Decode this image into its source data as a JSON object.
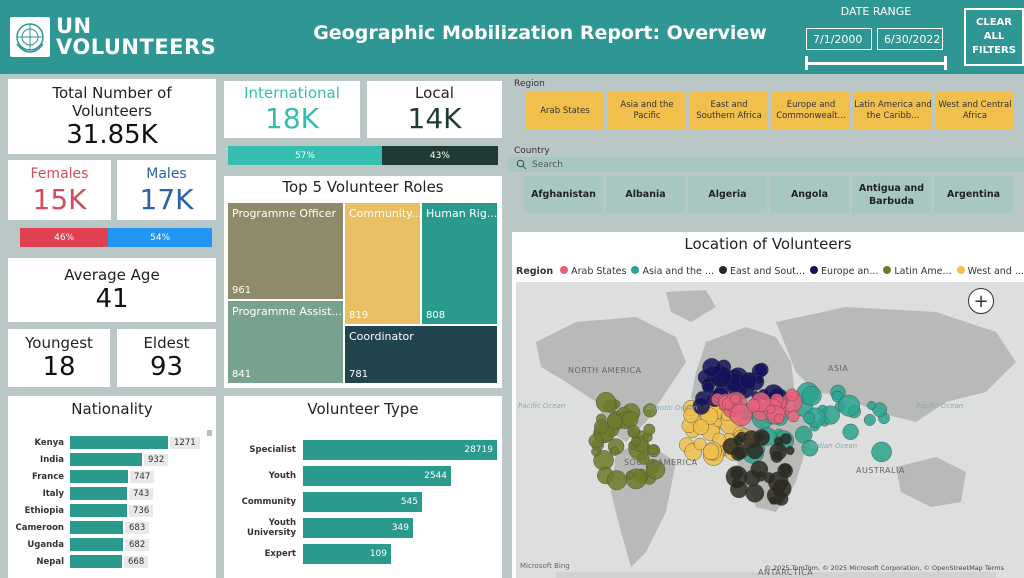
{
  "header": {
    "logo_text_line1": "UN",
    "logo_text_line2": "VOLUNTEERS",
    "title": "Geographic Mobilization Report: Overview",
    "date_range_label": "DATE RANGE",
    "date_start": "7/1/2000",
    "date_end": "6/30/2022",
    "clear_filters_label": "CLEAR ALL FILTERS",
    "colors": {
      "header_bg": "#2e9793"
    }
  },
  "kpis": {
    "total_label": "Total Number of Volunteers",
    "total_value": "31.85K",
    "females_label": "Females",
    "females_value": "15K",
    "males_label": "Males",
    "males_value": "17K",
    "gender_split": {
      "female_pct": "46%",
      "male_pct": "54%",
      "female_fraction": 0.46,
      "male_fraction": 0.54
    },
    "avg_age_label": "Average Age",
    "avg_age_value": "41",
    "youngest_label": "Youngest",
    "youngest_value": "18",
    "eldest_label": "Eldest",
    "eldest_value": "93",
    "international_label": "International",
    "international_value": "18K",
    "local_label": "Local",
    "local_value": "14K",
    "intl_split": {
      "intl_pct": "57%",
      "local_pct": "43%",
      "intl_fraction": 0.57,
      "local_fraction": 0.43
    },
    "colors": {
      "female": "#d44b5a",
      "male": "#2f8fd6",
      "international": "#35bdb0",
      "local": "#1f3b33",
      "female_bar": "#e0404f",
      "male_bar": "#2196f3"
    }
  },
  "top_roles": {
    "title": "Top 5 Volunteer Roles",
    "items": [
      {
        "name": "Programme Officer",
        "value": "961",
        "color": "#8f8a6a"
      },
      {
        "name": "Programme Assist...",
        "value": "841",
        "color": "#79a18f"
      },
      {
        "name": "Community...",
        "value": "819",
        "color": "#e8bf63"
      },
      {
        "name": "Human Rig...",
        "value": "808",
        "color": "#2a9a8c"
      },
      {
        "name": "Coordinator",
        "value": "781",
        "color": "#22444f"
      }
    ]
  },
  "nationality": {
    "title": "Nationality",
    "rows": [
      {
        "label": "Kenya",
        "value": 1271
      },
      {
        "label": "India",
        "value": 932
      },
      {
        "label": "France",
        "value": 747
      },
      {
        "label": "Italy",
        "value": 743
      },
      {
        "label": "Ethiopia",
        "value": 736
      },
      {
        "label": "Cameroon",
        "value": 683
      },
      {
        "label": "Uganda",
        "value": 682
      },
      {
        "label": "Nepal",
        "value": 668
      }
    ]
  },
  "volunteer_type": {
    "title": "Volunteer Type",
    "rows": [
      {
        "label": "Specialist",
        "value": 28719
      },
      {
        "label": "Youth",
        "value": 2544
      },
      {
        "label": "Community",
        "value": 545
      },
      {
        "label": "Youth University",
        "value": 349
      },
      {
        "label": "Expert",
        "value": 109
      }
    ]
  },
  "region_slicer": {
    "label": "Region",
    "items": [
      "Arab States",
      "Asia and the Pacific",
      "East and Southern Africa",
      "Europe and Commonwealt...",
      "Latin America and the Caribb...",
      "West and Central Africa"
    ],
    "color": "#f0bf4c"
  },
  "country_slicer": {
    "label": "Country",
    "search_placeholder": "Search",
    "items": [
      "Afghanistan",
      "Albania",
      "Algeria",
      "Angola",
      "Antigua and Barbuda",
      "Argentina"
    ]
  },
  "map": {
    "title": "Location of Volunteers",
    "legend_title": "Region",
    "legend": [
      {
        "name": "Arab States",
        "color": "#e8607a"
      },
      {
        "name": "Asia and the ...",
        "color": "#2aa38f"
      },
      {
        "name": "East and Sout...",
        "color": "#2b2a22"
      },
      {
        "name": "Europe an...",
        "color": "#14125a"
      },
      {
        "name": "Latin Ame...",
        "color": "#6f7a2a"
      },
      {
        "name": "West and ...",
        "color": "#f0bf4c"
      }
    ],
    "labels": {
      "north_america": "NORTH AMERICA",
      "south_america": "SOUTH AMERICA",
      "asia": "ASIA",
      "australia": "AUSTRALIA",
      "antarctica": "ANTARCTICA",
      "atlantic": "Atlantic Ocean",
      "pacific": "Pacific Ocean",
      "indian": "Indian Ocean"
    },
    "attribution": "© 2025 TomTom, © 2025 Microsoft Corporation, © OpenStreetMap  Terms",
    "bing_label": "Microsoft Bing",
    "zoom_in": "+",
    "zoom_out": "−"
  }
}
